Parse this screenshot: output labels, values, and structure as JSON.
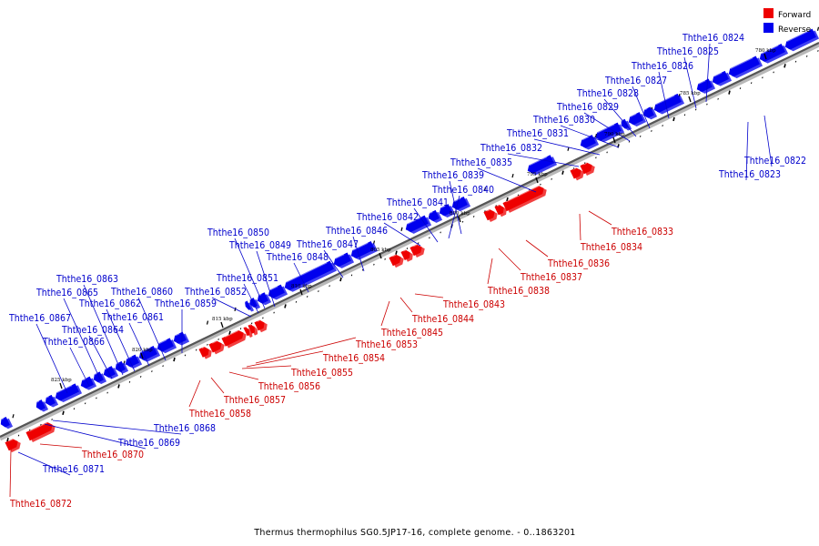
{
  "caption": "Thermus thermophilus SG0.5JP17-16, complete genome. - 0..1863201",
  "legend": [
    {
      "label": "Forward",
      "color": "#ee0000"
    },
    {
      "label": "Reverse",
      "color": "#0000ee"
    }
  ],
  "colors": {
    "forward": "#ee0000",
    "reverse": "#0000ee",
    "forward_label": "#cc0000",
    "reverse_label": "#0000cc"
  },
  "kbp_marks": [
    "780 kbp",
    "785 kbp",
    "790 kbp",
    "795 kbp",
    "800 kbp",
    "805 kbp",
    "810 kbp",
    "815 kbp",
    "820 kbp",
    "825 kbp"
  ],
  "genes": [
    {
      "id": "Ththe16_0822",
      "strand": "reverse"
    },
    {
      "id": "Ththe16_0823",
      "strand": "reverse"
    },
    {
      "id": "Ththe16_0824",
      "strand": "reverse"
    },
    {
      "id": "Ththe16_0825",
      "strand": "reverse"
    },
    {
      "id": "Ththe16_0826",
      "strand": "reverse"
    },
    {
      "id": "Ththe16_0827",
      "strand": "reverse"
    },
    {
      "id": "Ththe16_0828",
      "strand": "reverse"
    },
    {
      "id": "Ththe16_0829",
      "strand": "reverse"
    },
    {
      "id": "Ththe16_0830",
      "strand": "reverse"
    },
    {
      "id": "Ththe16_0831",
      "strand": "reverse"
    },
    {
      "id": "Ththe16_0832",
      "strand": "reverse"
    },
    {
      "id": "Ththe16_0833",
      "strand": "forward"
    },
    {
      "id": "Ththe16_0834",
      "strand": "forward"
    },
    {
      "id": "Ththe16_0835",
      "strand": "reverse"
    },
    {
      "id": "Ththe16_0836",
      "strand": "forward"
    },
    {
      "id": "Ththe16_0837",
      "strand": "forward"
    },
    {
      "id": "Ththe16_0838",
      "strand": "forward"
    },
    {
      "id": "Ththe16_0839",
      "strand": "reverse"
    },
    {
      "id": "Ththe16_0840",
      "strand": "reverse"
    },
    {
      "id": "Ththe16_0841",
      "strand": "reverse"
    },
    {
      "id": "Ththe16_0842",
      "strand": "reverse"
    },
    {
      "id": "Ththe16_0843",
      "strand": "forward"
    },
    {
      "id": "Ththe16_0844",
      "strand": "forward"
    },
    {
      "id": "Ththe16_0845",
      "strand": "forward"
    },
    {
      "id": "Ththe16_0846",
      "strand": "reverse"
    },
    {
      "id": "Ththe16_0847",
      "strand": "reverse"
    },
    {
      "id": "Ththe16_0848",
      "strand": "reverse"
    },
    {
      "id": "Ththe16_0849",
      "strand": "reverse"
    },
    {
      "id": "Ththe16_0850",
      "strand": "reverse"
    },
    {
      "id": "Ththe16_0851",
      "strand": "reverse"
    },
    {
      "id": "Ththe16_0852",
      "strand": "reverse"
    },
    {
      "id": "Ththe16_0853",
      "strand": "forward"
    },
    {
      "id": "Ththe16_0854",
      "strand": "forward"
    },
    {
      "id": "Ththe16_0855",
      "strand": "forward"
    },
    {
      "id": "Ththe16_0856",
      "strand": "forward"
    },
    {
      "id": "Ththe16_0857",
      "strand": "forward"
    },
    {
      "id": "Ththe16_0858",
      "strand": "forward"
    },
    {
      "id": "Ththe16_0859",
      "strand": "reverse"
    },
    {
      "id": "Ththe16_0860",
      "strand": "reverse"
    },
    {
      "id": "Ththe16_0861",
      "strand": "reverse"
    },
    {
      "id": "Ththe16_0862",
      "strand": "reverse"
    },
    {
      "id": "Ththe16_0863",
      "strand": "reverse"
    },
    {
      "id": "Ththe16_0864",
      "strand": "reverse"
    },
    {
      "id": "Ththe16_0865",
      "strand": "reverse"
    },
    {
      "id": "Ththe16_0866",
      "strand": "reverse"
    },
    {
      "id": "Ththe16_0867",
      "strand": "reverse"
    },
    {
      "id": "Ththe16_0868",
      "strand": "reverse"
    },
    {
      "id": "Ththe16_0869",
      "strand": "reverse"
    },
    {
      "id": "Ththe16_0870",
      "strand": "forward"
    },
    {
      "id": "Ththe16_0871",
      "strand": "reverse"
    },
    {
      "id": "Ththe16_0872",
      "strand": "forward"
    }
  ]
}
